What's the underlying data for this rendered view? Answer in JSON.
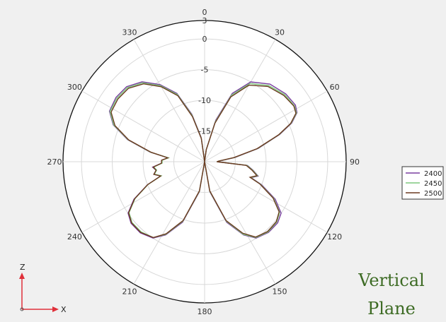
{
  "chart_data": {
    "type": "polar-line",
    "angle_ticks": [
      "0",
      "30",
      "60",
      "90",
      "120",
      "150",
      "180",
      "210",
      "240",
      "270",
      "300",
      "330"
    ],
    "radial_ticks": [
      3,
      0,
      -5,
      -10,
      -15
    ],
    "rlim": [
      -20,
      3
    ],
    "grid": true,
    "legend_position": "right",
    "series": [
      {
        "name": "2400",
        "color": "#7a3fa0",
        "points": [
          [
            0,
            -20
          ],
          [
            8,
            -18
          ],
          [
            15,
            -13
          ],
          [
            22,
            -8
          ],
          [
            30,
            -5
          ],
          [
            40,
            -3.5
          ],
          [
            50,
            -2.8
          ],
          [
            58,
            -2.6
          ],
          [
            62,
            -3
          ],
          [
            66,
            -4.5
          ],
          [
            70,
            -7
          ],
          [
            76,
            -11
          ],
          [
            82,
            -15
          ],
          [
            87,
            -17.5
          ],
          [
            90,
            -18
          ],
          [
            95,
            -13
          ],
          [
            100,
            -12
          ],
          [
            105,
            -11
          ],
          [
            109,
            -12
          ],
          [
            112,
            -10
          ],
          [
            118,
            -7
          ],
          [
            124,
            -5
          ],
          [
            130,
            -4.5
          ],
          [
            138,
            -4.5
          ],
          [
            146,
            -5
          ],
          [
            152,
            -6.5
          ],
          [
            160,
            -9.5
          ],
          [
            170,
            -15
          ],
          [
            180,
            -20
          ],
          [
            190,
            -15
          ],
          [
            200,
            -9.5
          ],
          [
            208,
            -6.5
          ],
          [
            214,
            -5
          ],
          [
            222,
            -4.4
          ],
          [
            230,
            -4.4
          ],
          [
            236,
            -5
          ],
          [
            242,
            -7
          ],
          [
            248,
            -10
          ],
          [
            252,
            -12.5
          ],
          [
            256,
            -11.5
          ],
          [
            260,
            -12
          ],
          [
            264,
            -11.5
          ],
          [
            268,
            -13
          ],
          [
            272,
            -13
          ],
          [
            276,
            -14
          ],
          [
            280,
            -11
          ],
          [
            286,
            -7
          ],
          [
            292,
            -4
          ],
          [
            298,
            -2.5
          ],
          [
            306,
            -2.2
          ],
          [
            314,
            -2.4
          ],
          [
            322,
            -3.5
          ],
          [
            330,
            -5.5
          ],
          [
            338,
            -8
          ],
          [
            345,
            -12
          ],
          [
            352,
            -16
          ],
          [
            360,
            -20
          ]
        ]
      },
      {
        "name": "2450",
        "color": "#7fc97f",
        "points": [
          [
            0,
            -20
          ],
          [
            8,
            -18
          ],
          [
            15,
            -13.3
          ],
          [
            22,
            -8.3
          ],
          [
            30,
            -5.3
          ],
          [
            40,
            -3.8
          ],
          [
            50,
            -3
          ],
          [
            58,
            -2.8
          ],
          [
            62,
            -3.1
          ],
          [
            66,
            -4.6
          ],
          [
            70,
            -7.1
          ],
          [
            76,
            -11.1
          ],
          [
            82,
            -15.1
          ],
          [
            87,
            -17.6
          ],
          [
            90,
            -18
          ],
          [
            95,
            -13.1
          ],
          [
            100,
            -12.1
          ],
          [
            105,
            -11.1
          ],
          [
            109,
            -12.1
          ],
          [
            112,
            -10.2
          ],
          [
            118,
            -7.3
          ],
          [
            124,
            -5.3
          ],
          [
            130,
            -4.7
          ],
          [
            138,
            -4.6
          ],
          [
            146,
            -5.1
          ],
          [
            152,
            -6.6
          ],
          [
            160,
            -9.7
          ],
          [
            170,
            -15.1
          ],
          [
            180,
            -20
          ],
          [
            190,
            -15.1
          ],
          [
            200,
            -9.7
          ],
          [
            208,
            -6.6
          ],
          [
            214,
            -5.1
          ],
          [
            222,
            -4.6
          ],
          [
            230,
            -4.6
          ],
          [
            236,
            -5.2
          ],
          [
            242,
            -7.2
          ],
          [
            248,
            -10.1
          ],
          [
            252,
            -12.6
          ],
          [
            256,
            -11.6
          ],
          [
            260,
            -12.1
          ],
          [
            264,
            -11.7
          ],
          [
            268,
            -13.1
          ],
          [
            272,
            -13.1
          ],
          [
            276,
            -14.1
          ],
          [
            280,
            -11.1
          ],
          [
            286,
            -7.1
          ],
          [
            292,
            -4.1
          ],
          [
            298,
            -2.6
          ],
          [
            306,
            -2.4
          ],
          [
            314,
            -2.6
          ],
          [
            322,
            -3.7
          ],
          [
            330,
            -5.7
          ],
          [
            338,
            -8.2
          ],
          [
            345,
            -12.2
          ],
          [
            352,
            -16.1
          ],
          [
            360,
            -20
          ]
        ]
      },
      {
        "name": "2500",
        "color": "#6b3a20",
        "points": [
          [
            0,
            -20
          ],
          [
            8,
            -18
          ],
          [
            15,
            -13.5
          ],
          [
            22,
            -8.6
          ],
          [
            30,
            -5.6
          ],
          [
            40,
            -4
          ],
          [
            50,
            -3.2
          ],
          [
            58,
            -2.9
          ],
          [
            62,
            -3.2
          ],
          [
            66,
            -4.7
          ],
          [
            70,
            -7.2
          ],
          [
            76,
            -11.2
          ],
          [
            82,
            -15.2
          ],
          [
            87,
            -17.7
          ],
          [
            90,
            -18
          ],
          [
            95,
            -13.2
          ],
          [
            100,
            -12.2
          ],
          [
            105,
            -11.2
          ],
          [
            109,
            -12.2
          ],
          [
            112,
            -10.3
          ],
          [
            118,
            -7.4
          ],
          [
            124,
            -5.4
          ],
          [
            130,
            -4.8
          ],
          [
            138,
            -4.7
          ],
          [
            146,
            -5.2
          ],
          [
            152,
            -6.8
          ],
          [
            160,
            -9.8
          ],
          [
            170,
            -15.2
          ],
          [
            180,
            -20
          ],
          [
            190,
            -15.2
          ],
          [
            200,
            -9.8
          ],
          [
            208,
            -6.7
          ],
          [
            214,
            -5.1
          ],
          [
            222,
            -4.5
          ],
          [
            230,
            -4.5
          ],
          [
            236,
            -5.1
          ],
          [
            242,
            -7.1
          ],
          [
            248,
            -10
          ],
          [
            252,
            -12.5
          ],
          [
            256,
            -11.5
          ],
          [
            260,
            -12
          ],
          [
            264,
            -11.6
          ],
          [
            268,
            -13
          ],
          [
            272,
            -13
          ],
          [
            276,
            -14
          ],
          [
            280,
            -11.2
          ],
          [
            286,
            -7.2
          ],
          [
            292,
            -4.3
          ],
          [
            298,
            -2.8
          ],
          [
            306,
            -2.6
          ],
          [
            314,
            -2.8
          ],
          [
            322,
            -3.9
          ],
          [
            330,
            -5.9
          ],
          [
            338,
            -8.4
          ],
          [
            345,
            -12.4
          ],
          [
            352,
            -16.2
          ],
          [
            360,
            -20
          ]
        ]
      }
    ]
  },
  "axes_icon": {
    "z_label": "Z",
    "x_label": "X",
    "color": "#e0303a"
  },
  "caption": {
    "line1": "Vertical",
    "line2": "Plane",
    "color": "#3d6b24"
  }
}
